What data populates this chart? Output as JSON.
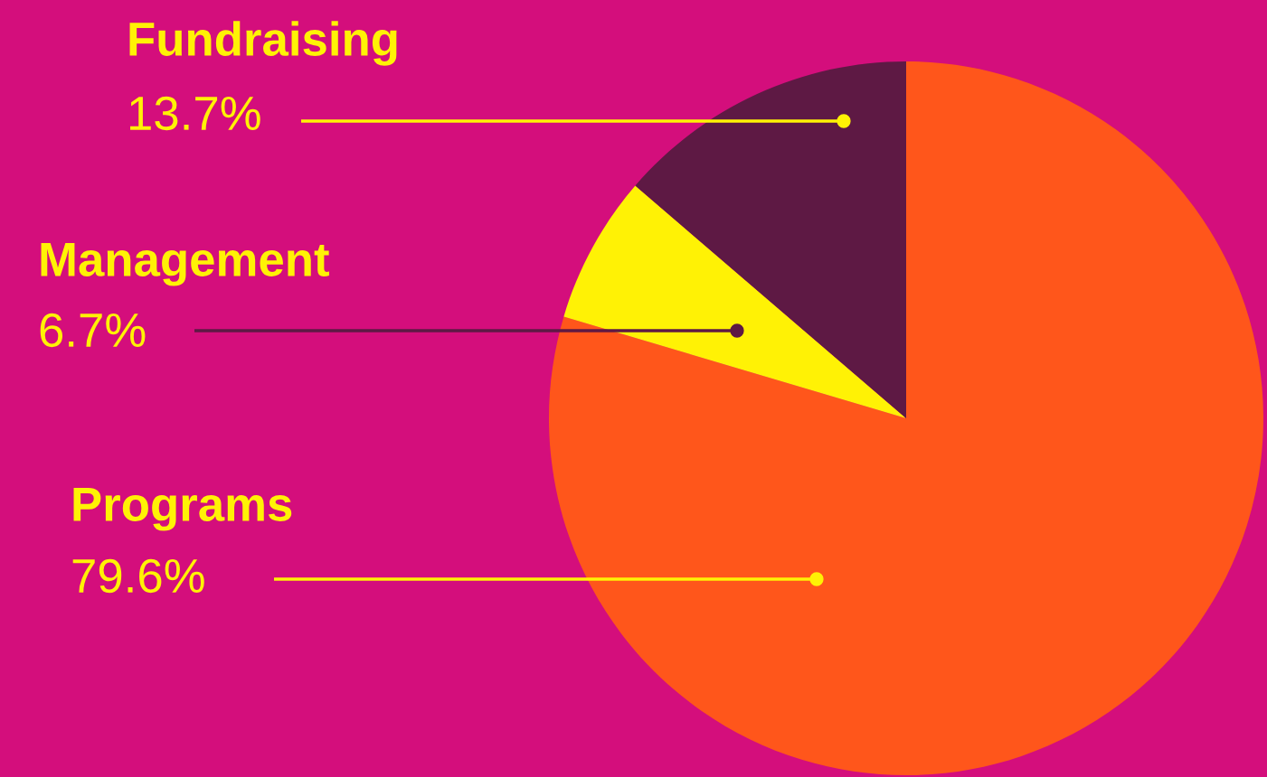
{
  "chart_data": {
    "type": "pie",
    "categories": [
      "Programs",
      "Management",
      "Fundraising"
    ],
    "values": [
      79.6,
      6.7,
      13.7
    ],
    "colors": [
      "#ff561b",
      "#fff205",
      "#5e1944"
    ],
    "value_labels": [
      "79.6%",
      "6.7%",
      "13.7%"
    ],
    "legend": false
  }
}
